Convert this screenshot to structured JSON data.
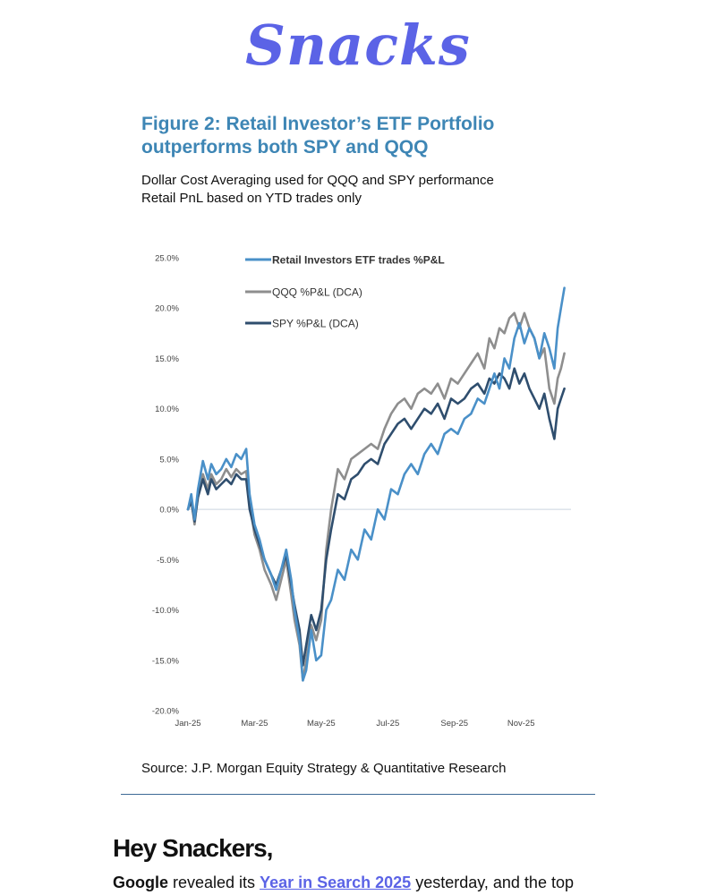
{
  "brand": {
    "logo_text": "Snacks",
    "color": "#5b63e6"
  },
  "figure": {
    "title": "Figure 2: Retail Investor’s ETF Portfolio outperforms both SPY and QQQ",
    "title_color": "#3e86b5",
    "subtitle_lines": [
      "Dollar Cost Averaging used for QQQ and SPY performance",
      "Retail PnL based on YTD trades only"
    ],
    "source": "Source: J.P. Morgan Equity Strategy & Quantitative Research"
  },
  "chart_data": {
    "type": "line",
    "title": "",
    "xlabel": "",
    "ylabel": "",
    "ylim": [
      -20,
      25
    ],
    "xlim": [
      0,
      11.5
    ],
    "x_tick_positions": [
      0,
      2,
      4,
      6,
      8,
      10
    ],
    "x_tick_labels": [
      "Jan-25",
      "Mar-25",
      "May-25",
      "Jul-25",
      "Sep-25",
      "Nov-25"
    ],
    "y_ticks": [
      25,
      20,
      15,
      10,
      5,
      0,
      -5,
      -10,
      -15,
      -20
    ],
    "y_tick_labels": [
      "25.0%",
      "20.0%",
      "15.0%",
      "10.0%",
      "5.0%",
      "0.0%",
      "-5.0%",
      "-10.0%",
      "-15.0%",
      "-20.0%"
    ],
    "zero_line": true,
    "legend_position": "top-left",
    "series": [
      {
        "name": "Retail Investors ETF trades %P&L",
        "color": "#4a90c8",
        "x": [
          0,
          0.1,
          0.2,
          0.3,
          0.45,
          0.6,
          0.7,
          0.85,
          1.0,
          1.15,
          1.3,
          1.45,
          1.6,
          1.75,
          1.85,
          2.0,
          2.15,
          2.3,
          2.5,
          2.65,
          2.8,
          2.95,
          3.1,
          3.2,
          3.35,
          3.45,
          3.55,
          3.7,
          3.85,
          4.0,
          4.15,
          4.3,
          4.5,
          4.7,
          4.9,
          5.1,
          5.3,
          5.5,
          5.7,
          5.9,
          6.1,
          6.3,
          6.5,
          6.7,
          6.9,
          7.1,
          7.3,
          7.5,
          7.7,
          7.9,
          8.1,
          8.3,
          8.5,
          8.7,
          8.9,
          9.05,
          9.2,
          9.35,
          9.5,
          9.65,
          9.8,
          9.95,
          10.1,
          10.25,
          10.4,
          10.55,
          10.7,
          10.85,
          11.0,
          11.1,
          11.2,
          11.3
        ],
        "values": [
          0,
          1.5,
          -1.0,
          2.0,
          4.8,
          3.0,
          4.5,
          3.5,
          4.0,
          5.0,
          4.2,
          5.5,
          5.0,
          6.0,
          1.5,
          -1.5,
          -3.0,
          -5.0,
          -6.5,
          -8.0,
          -6.0,
          -4.0,
          -7.0,
          -10.0,
          -13.0,
          -17.0,
          -16.0,
          -12.0,
          -15.0,
          -14.5,
          -10.0,
          -9.0,
          -6.0,
          -7.0,
          -4.0,
          -5.0,
          -2.0,
          -3.0,
          0.0,
          -1.0,
          2.0,
          1.5,
          3.5,
          4.5,
          3.5,
          5.5,
          6.5,
          5.5,
          7.5,
          8.0,
          7.5,
          9.0,
          9.5,
          11.0,
          10.5,
          12.0,
          13.5,
          12.0,
          15.0,
          14.0,
          17.0,
          18.5,
          16.5,
          18.0,
          17.0,
          15.0,
          17.5,
          16.0,
          14.0,
          18.0,
          20.0,
          22.0
        ]
      },
      {
        "name": "QQQ %P&L (DCA)",
        "color": "#8e8e8e",
        "x": [
          0,
          0.1,
          0.2,
          0.3,
          0.45,
          0.6,
          0.7,
          0.85,
          1.0,
          1.15,
          1.3,
          1.45,
          1.6,
          1.75,
          1.85,
          2.0,
          2.15,
          2.3,
          2.5,
          2.65,
          2.8,
          2.95,
          3.1,
          3.2,
          3.35,
          3.45,
          3.55,
          3.7,
          3.85,
          4.0,
          4.15,
          4.3,
          4.5,
          4.7,
          4.9,
          5.1,
          5.3,
          5.5,
          5.7,
          5.9,
          6.1,
          6.3,
          6.5,
          6.7,
          6.9,
          7.1,
          7.3,
          7.5,
          7.7,
          7.9,
          8.1,
          8.3,
          8.5,
          8.7,
          8.9,
          9.05,
          9.2,
          9.35,
          9.5,
          9.65,
          9.8,
          9.95,
          10.1,
          10.25,
          10.4,
          10.55,
          10.7,
          10.85,
          11.0,
          11.1,
          11.2,
          11.3
        ],
        "values": [
          0,
          1.0,
          -1.5,
          1.5,
          3.5,
          2.0,
          3.5,
          2.5,
          3.0,
          4.0,
          3.2,
          4.0,
          3.5,
          3.8,
          0.5,
          -2.5,
          -4.0,
          -6.0,
          -7.5,
          -9.0,
          -7.0,
          -5.0,
          -8.5,
          -11.0,
          -13.5,
          -17.0,
          -15.0,
          -11.5,
          -13.0,
          -11.0,
          -4.0,
          0.0,
          4.0,
          3.0,
          5.0,
          5.5,
          6.0,
          6.5,
          6.0,
          8.0,
          9.5,
          10.5,
          11.0,
          10.0,
          11.5,
          12.0,
          11.5,
          12.5,
          11.0,
          13.0,
          12.5,
          13.5,
          14.5,
          15.5,
          14.0,
          17.0,
          16.0,
          18.0,
          17.5,
          19.0,
          19.5,
          18.0,
          19.5,
          18.0,
          17.0,
          15.0,
          16.0,
          12.0,
          10.5,
          13.0,
          14.0,
          15.5
        ]
      },
      {
        "name": "SPY %P&L (DCA)",
        "color": "#2f4e6e",
        "x": [
          0,
          0.1,
          0.2,
          0.3,
          0.45,
          0.6,
          0.7,
          0.85,
          1.0,
          1.15,
          1.3,
          1.45,
          1.6,
          1.75,
          1.85,
          2.0,
          2.15,
          2.3,
          2.5,
          2.65,
          2.8,
          2.95,
          3.1,
          3.2,
          3.35,
          3.45,
          3.55,
          3.7,
          3.85,
          4.0,
          4.15,
          4.3,
          4.5,
          4.7,
          4.9,
          5.1,
          5.3,
          5.5,
          5.7,
          5.9,
          6.1,
          6.3,
          6.5,
          6.7,
          6.9,
          7.1,
          7.3,
          7.5,
          7.7,
          7.9,
          8.1,
          8.3,
          8.5,
          8.7,
          8.9,
          9.05,
          9.2,
          9.35,
          9.5,
          9.65,
          9.8,
          9.95,
          10.1,
          10.25,
          10.4,
          10.55,
          10.7,
          10.85,
          11.0,
          11.1,
          11.2,
          11.3
        ],
        "values": [
          0,
          0.8,
          -1.2,
          1.2,
          3.0,
          1.5,
          3.0,
          2.0,
          2.5,
          3.0,
          2.5,
          3.5,
          3.0,
          3.0,
          0.0,
          -2.0,
          -3.5,
          -5.0,
          -6.5,
          -7.5,
          -6.0,
          -4.5,
          -7.5,
          -9.5,
          -12.0,
          -15.5,
          -13.5,
          -10.5,
          -12.0,
          -10.0,
          -5.0,
          -2.0,
          1.5,
          1.0,
          3.0,
          3.5,
          4.5,
          5.0,
          4.5,
          6.5,
          7.5,
          8.5,
          9.0,
          8.0,
          9.0,
          10.0,
          9.5,
          10.5,
          9.0,
          11.0,
          10.5,
          11.0,
          12.0,
          12.5,
          11.5,
          13.0,
          12.5,
          13.5,
          13.0,
          12.0,
          14.0,
          12.5,
          13.5,
          12.0,
          11.0,
          10.0,
          11.5,
          9.0,
          7.0,
          10.0,
          11.0,
          12.0
        ]
      }
    ]
  },
  "newsletter": {
    "greeting": "Hey Snackers,",
    "intro_company": "Google",
    "intro_text_1": " revealed its ",
    "intro_link": "Year in Search 2025",
    "intro_text_2": " yesterday, and the top",
    "link_color": "#5b63e6"
  }
}
